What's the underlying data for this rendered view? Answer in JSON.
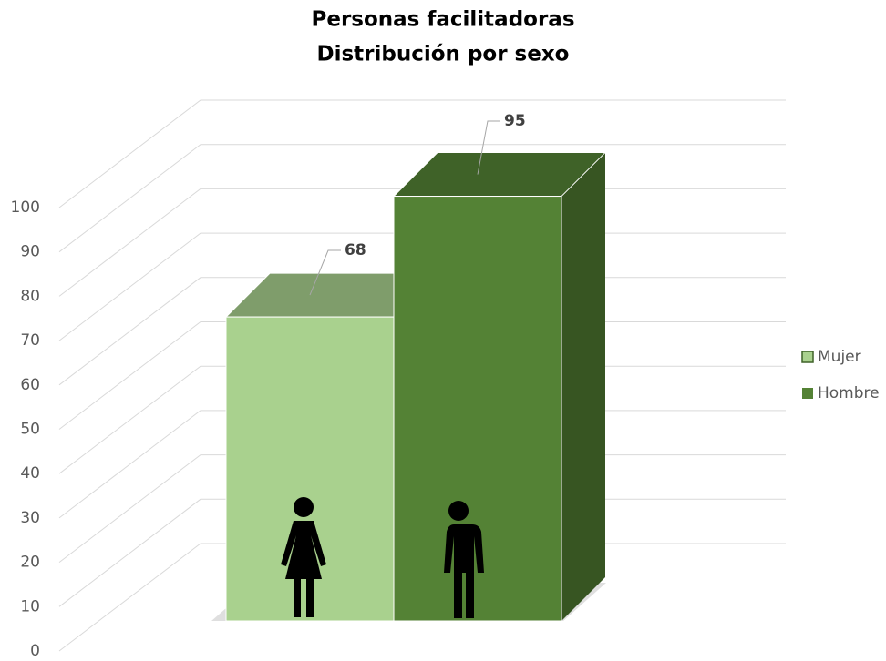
{
  "chart_data": {
    "type": "bar3d",
    "title": "Personas facilitadoras",
    "subtitle": "Distribución por sexo",
    "categories": [
      null
    ],
    "series": [
      {
        "name": "Mujer",
        "color": "#a9d18e",
        "values": [
          68
        ]
      },
      {
        "name": "Hombre",
        "color": "#548235",
        "values": [
          95
        ]
      }
    ],
    "ylim": [
      0,
      100
    ],
    "yticks": [
      0,
      10,
      20,
      30,
      40,
      50,
      60,
      70,
      80,
      90,
      100
    ],
    "grid": true,
    "legend": "right"
  }
}
